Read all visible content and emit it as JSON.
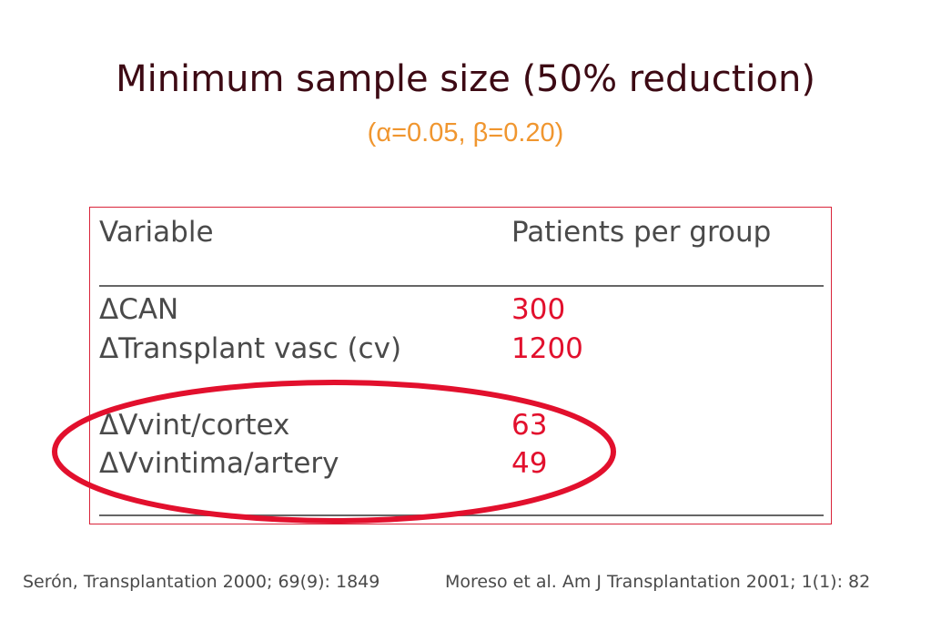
{
  "slide": {
    "title": "Minimum sample size (50% reduction)",
    "subtitle": "(α=0.05, β=0.20)"
  },
  "table": {
    "col_variable": "Variable",
    "col_patients": "Patients per group",
    "rows": [
      {
        "variable": "ΔCAN",
        "patients": "300"
      },
      {
        "variable": "ΔTransplant vasc  (cv)",
        "patients": "1200"
      },
      {
        "variable": "ΔVvint/cortex",
        "patients": "63"
      },
      {
        "variable": "ΔVvintima/artery",
        "patients": "49"
      }
    ]
  },
  "references": {
    "left": "Serón, Transplantation 2000; 69(9): 1849",
    "right": "Moreso et al. Am J Transplantation 2001; 1(1): 82"
  },
  "colors": {
    "title": "#3d0a14",
    "subtitle": "#f0962f",
    "highlight_red": "#e2102d",
    "text_gray": "#4a4a4a"
  }
}
